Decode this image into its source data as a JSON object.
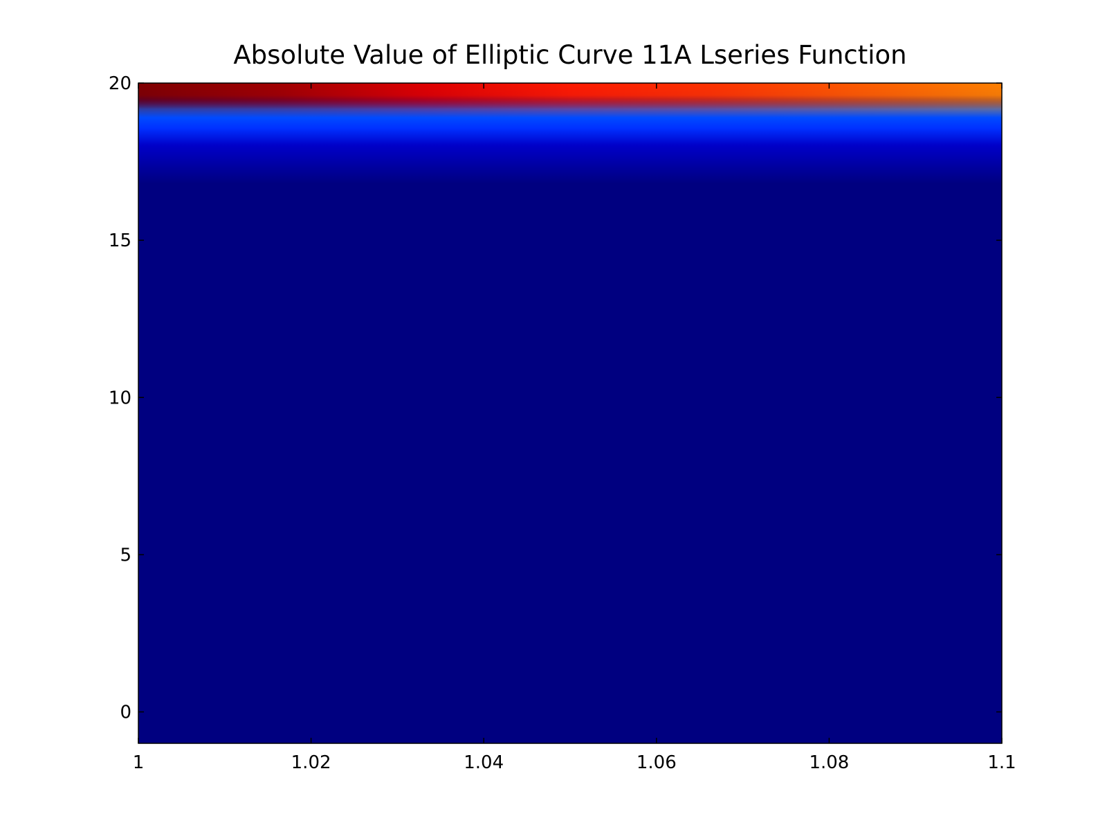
{
  "chart_data": {
    "type": "heatmap",
    "title": "Absolute Value of Elliptic Curve 11A Lseries Function",
    "xlabel": "",
    "ylabel": "",
    "xlim": [
      1.0,
      1.1
    ],
    "ylim": [
      -1,
      20
    ],
    "x_ticks": [
      "1",
      "1.02",
      "1.04",
      "1.06",
      "1.08",
      "1.1"
    ],
    "x_tick_values": [
      1.0,
      1.02,
      1.04,
      1.06,
      1.08,
      1.1
    ],
    "y_ticks": [
      "0",
      "5",
      "10",
      "15",
      "20"
    ],
    "y_tick_values": [
      0,
      5,
      10,
      15,
      20
    ],
    "grid": false,
    "colormap": "jet",
    "background_color": "#000080",
    "top_band_colors_left_to_right": [
      "#800000",
      "#a30000",
      "#e00000",
      "#ff1a00",
      "#ff3300",
      "#ff5a00",
      "#ff8000"
    ],
    "blue_band_colors": [
      "#0060ff",
      "#0030ff",
      "#0000c8",
      "#0000a0",
      "#000080"
    ]
  }
}
